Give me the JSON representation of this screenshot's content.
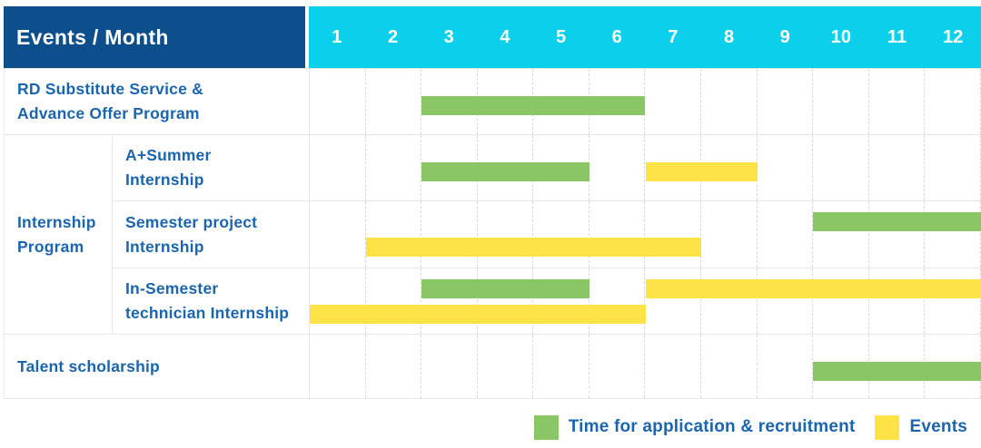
{
  "header": {
    "title": "Events / Month",
    "months": [
      "1",
      "2",
      "3",
      "4",
      "5",
      "6",
      "7",
      "8",
      "9",
      "10",
      "11",
      "12"
    ]
  },
  "colors": {
    "header_bg": "#0D4F8C",
    "months_bg": "#0BD0EB",
    "green": "#8BC665",
    "yellow": "#FDE345",
    "label_text": "#1B65AE"
  },
  "legend": {
    "items": [
      {
        "label": "Time for application & recruitment",
        "color": "green"
      },
      {
        "label": "Events",
        "color": "yellow"
      }
    ]
  },
  "chart_data": {
    "type": "table",
    "subtype": "gantt",
    "title": "Events / Month",
    "x_axis": {
      "unit": "month",
      "range": [
        1,
        12
      ],
      "ticks": [
        "1",
        "2",
        "3",
        "4",
        "5",
        "6",
        "7",
        "8",
        "9",
        "10",
        "11",
        "12"
      ]
    },
    "group": {
      "label": "Internship Program",
      "label_lines": [
        "Internship",
        "Program"
      ],
      "row_indexes": [
        1,
        2,
        3
      ]
    },
    "rows": [
      {
        "label": "RD Substitute Service & Advance Offer Program",
        "label_lines": [
          "RD Substitute Service &",
          "Advance Offer Program"
        ],
        "bars": [
          {
            "series": "Time for application & recruitment",
            "color": "green",
            "start_month": 3,
            "end_month": 6,
            "line": "single"
          }
        ]
      },
      {
        "label": "A+Summer Internship",
        "label_lines": [
          "A+Summer",
          "Internship"
        ],
        "bars": [
          {
            "series": "Time for application & recruitment",
            "color": "green",
            "start_month": 3,
            "end_month": 5,
            "line": "single"
          },
          {
            "series": "Events",
            "color": "yellow",
            "start_month": 7,
            "end_month": 8,
            "line": "single"
          }
        ]
      },
      {
        "label": "Semester project Internship",
        "label_lines": [
          "Semester project",
          "Internship"
        ],
        "bars": [
          {
            "series": "Time for application & recruitment",
            "color": "green",
            "start_month": 10,
            "end_month": 12,
            "line": "top"
          },
          {
            "series": "Events",
            "color": "yellow",
            "start_month": 2,
            "end_month": 7,
            "line": "bottom"
          }
        ]
      },
      {
        "label": "In-Semester technician Internship",
        "label_lines": [
          "In-Semester",
          "technician Internship"
        ],
        "bars": [
          {
            "series": "Time for application & recruitment",
            "color": "green",
            "start_month": 3,
            "end_month": 5,
            "line": "top"
          },
          {
            "series": "Events",
            "color": "yellow",
            "start_month": 7,
            "end_month": 12,
            "line": "top"
          },
          {
            "series": "Events",
            "color": "yellow",
            "start_month": 1,
            "end_month": 6,
            "line": "bottom"
          }
        ]
      },
      {
        "label": "Talent scholarship",
        "label_lines": [
          "Talent scholarship"
        ],
        "bars": [
          {
            "series": "Time for application & recruitment",
            "color": "green",
            "start_month": 10,
            "end_month": 12,
            "line": "single"
          }
        ]
      }
    ]
  }
}
